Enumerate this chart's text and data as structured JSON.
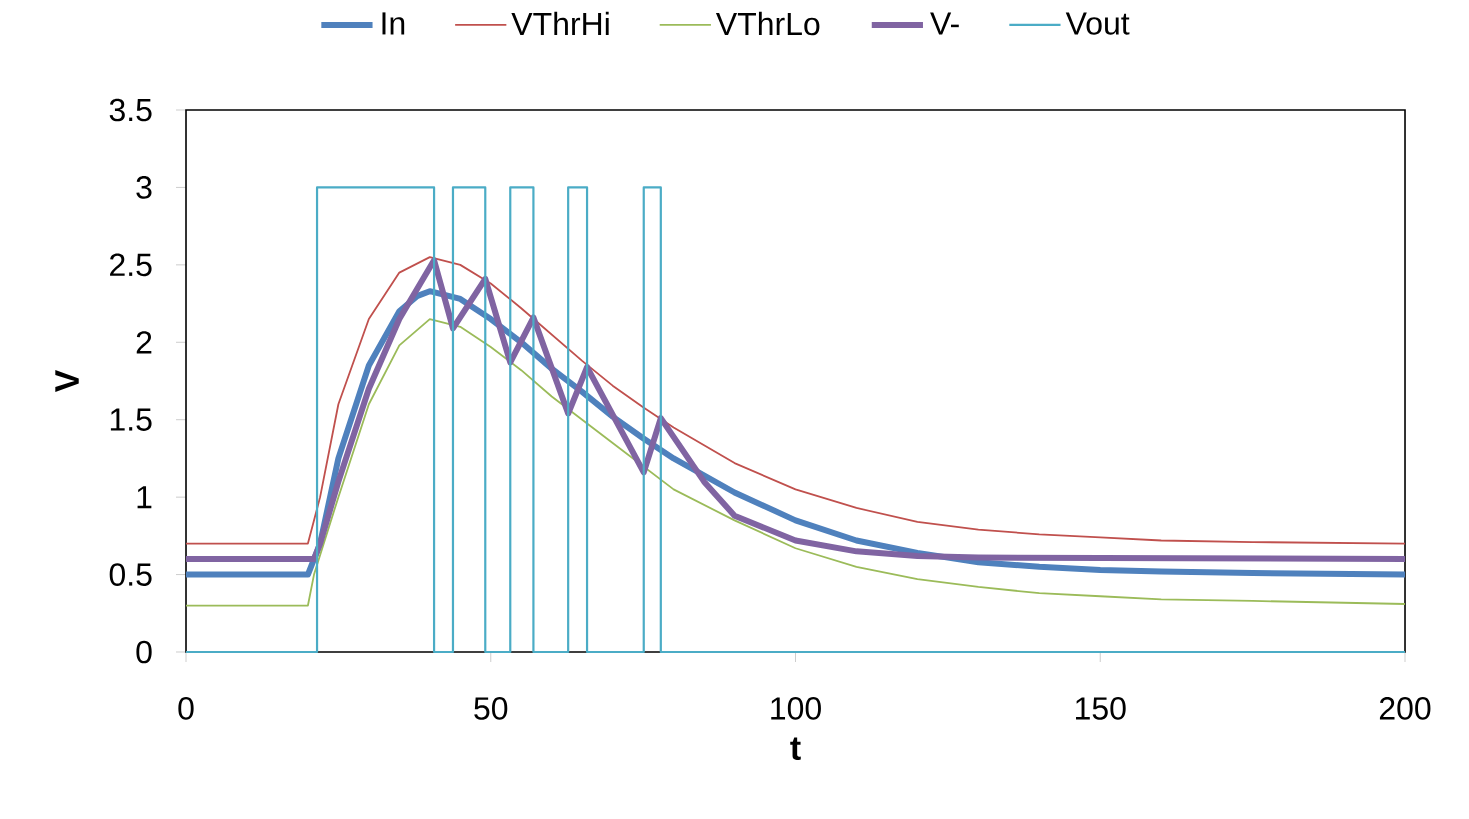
{
  "chart_data": {
    "type": "line",
    "xlabel": "t",
    "ylabel": "V",
    "xlim": [
      0,
      200
    ],
    "ylim": [
      0,
      3.5
    ],
    "xticks": [
      0,
      50,
      100,
      150,
      200
    ],
    "yticks": [
      0,
      0.5,
      1,
      1.5,
      2,
      2.5,
      3,
      3.5
    ],
    "grid": false,
    "legend": "top",
    "marker": "none",
    "line_style": "solid",
    "series": [
      {
        "name": "In",
        "color": "#4f81bd",
        "x": [
          0,
          20,
          22,
          25,
          30,
          35,
          38,
          40,
          45,
          50,
          55,
          60,
          65,
          70,
          75,
          80,
          90,
          100,
          110,
          120,
          130,
          140,
          150,
          160,
          175,
          200
        ],
        "values": [
          0.5,
          0.5,
          0.7,
          1.25,
          1.85,
          2.2,
          2.3,
          2.33,
          2.28,
          2.15,
          2.0,
          1.83,
          1.68,
          1.52,
          1.38,
          1.25,
          1.03,
          0.85,
          0.72,
          0.64,
          0.58,
          0.55,
          0.53,
          0.52,
          0.51,
          0.5
        ]
      },
      {
        "name": "VThrHi",
        "color": "#c0504d",
        "x": [
          0,
          20,
          22,
          25,
          30,
          35,
          40,
          45,
          50,
          55,
          60,
          65,
          70,
          75,
          80,
          90,
          100,
          110,
          120,
          130,
          140,
          150,
          160,
          175,
          200
        ],
        "values": [
          0.7,
          0.7,
          1.0,
          1.6,
          2.15,
          2.45,
          2.55,
          2.5,
          2.38,
          2.22,
          2.05,
          1.88,
          1.72,
          1.58,
          1.45,
          1.22,
          1.05,
          0.93,
          0.84,
          0.79,
          0.76,
          0.74,
          0.72,
          0.71,
          0.7
        ]
      },
      {
        "name": "VThrLo",
        "color": "#9bbb59",
        "x": [
          0,
          20,
          21,
          25,
          30,
          35,
          40,
          45,
          50,
          55,
          60,
          65,
          70,
          75,
          80,
          90,
          100,
          110,
          120,
          130,
          140,
          150,
          160,
          175,
          200
        ],
        "values": [
          0.3,
          0.3,
          0.5,
          1.0,
          1.6,
          1.98,
          2.15,
          2.1,
          1.97,
          1.82,
          1.65,
          1.5,
          1.35,
          1.2,
          1.05,
          0.85,
          0.67,
          0.55,
          0.47,
          0.42,
          0.38,
          0.36,
          0.34,
          0.33,
          0.31
        ]
      },
      {
        "name": "V-",
        "color": "#8064a2",
        "x": [
          0,
          21,
          22,
          25,
          30,
          35,
          40.7,
          43.8,
          49.1,
          53.2,
          57,
          62.7,
          65.8,
          75.1,
          77.9,
          85,
          90,
          100,
          110,
          120,
          130,
          200
        ],
        "values": [
          0.6,
          0.6,
          0.7,
          1.1,
          1.7,
          2.15,
          2.53,
          2.09,
          2.41,
          1.87,
          2.16,
          1.54,
          1.84,
          1.16,
          1.51,
          1.1,
          0.88,
          0.72,
          0.65,
          0.62,
          0.61,
          0.6
        ]
      },
      {
        "name": "Vout",
        "color": "#4bacc6",
        "x": [
          0,
          21.5,
          21.5,
          40.7,
          40.7,
          43.8,
          43.8,
          49.1,
          49.1,
          53.2,
          53.2,
          57,
          57,
          62.7,
          62.7,
          65.8,
          65.8,
          75.1,
          75.1,
          77.9,
          77.9,
          200
        ],
        "values": [
          0,
          0,
          3,
          3,
          0,
          0,
          3,
          3,
          0,
          0,
          3,
          3,
          0,
          0,
          3,
          3,
          0,
          0,
          3,
          3,
          0,
          0
        ]
      }
    ]
  }
}
